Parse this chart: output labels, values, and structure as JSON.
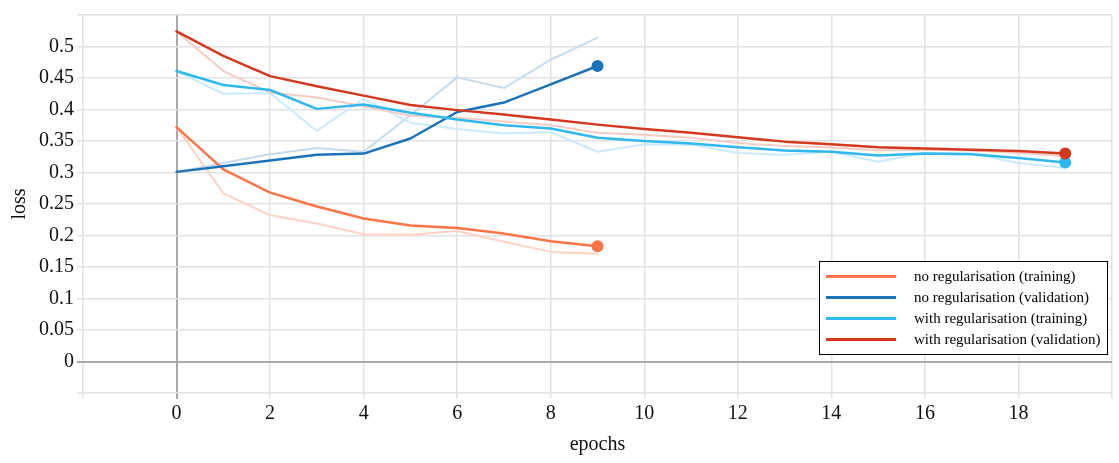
{
  "chart_data": {
    "type": "line",
    "xlabel": "epochs",
    "ylabel": "loss",
    "xlim": [
      -2,
      20
    ],
    "xticks": [
      {
        "value": -2,
        "label": null
      },
      0,
      2,
      4,
      6,
      8,
      10,
      12,
      14,
      16,
      18,
      {
        "value": 20,
        "label": null
      }
    ],
    "ylim": [
      -0.05,
      0.55
    ],
    "yticks": [
      {
        "value": -0.05,
        "label": null
      },
      0,
      0.05,
      0.1,
      0.15,
      0.2,
      0.25,
      0.3,
      0.35,
      0.4,
      0.45,
      0.5,
      {
        "value": 0.55,
        "label": null
      }
    ],
    "grid": true,
    "legend": "bottom right",
    "line_style": "solid",
    "series": [
      {
        "color": "#fdd3c6",
        "marker": "none",
        "x": [
          0,
          1,
          2,
          3,
          4,
          5,
          6,
          7,
          8,
          9
        ],
        "values": [
          0.372,
          0.267,
          0.232,
          0.219,
          0.202,
          0.201,
          0.207,
          0.19,
          0.174,
          0.171
        ]
      },
      {
        "color": "#c6dcee",
        "marker": "none",
        "x": [
          0,
          1,
          2,
          3,
          4,
          5,
          6,
          7,
          8,
          9
        ],
        "values": [
          0.301,
          0.315,
          0.329,
          0.339,
          0.333,
          0.391,
          0.451,
          0.434,
          0.479,
          0.514
        ]
      },
      {
        "color": "#c9ebfa",
        "marker": "none",
        "x": [
          0,
          1,
          2,
          3,
          4,
          5,
          6,
          7,
          8,
          9,
          10,
          11,
          12,
          13,
          14,
          15,
          16,
          17,
          18,
          19
        ],
        "values": [
          0.461,
          0.425,
          0.426,
          0.366,
          0.417,
          0.379,
          0.369,
          0.362,
          0.364,
          0.333,
          0.345,
          0.344,
          0.331,
          0.328,
          0.333,
          0.317,
          0.331,
          0.33,
          0.315,
          0.307
        ]
      },
      {
        "color": "#f4cdc4",
        "marker": "none",
        "x": [
          0,
          1,
          2,
          3,
          4,
          5,
          6,
          7,
          8,
          9,
          10,
          11,
          12,
          13,
          14,
          15,
          16,
          17,
          18,
          19
        ],
        "values": [
          0.524,
          0.461,
          0.427,
          0.419,
          0.405,
          0.39,
          0.387,
          0.381,
          0.375,
          0.363,
          0.36,
          0.355,
          0.347,
          0.342,
          0.34,
          0.335,
          0.336,
          0.335,
          0.331,
          0.326
        ]
      },
      {
        "type": "scatter",
        "color": "#fd7446",
        "marker": "circle",
        "x": [
          9
        ],
        "values": [
          0.183
        ]
      },
      {
        "type": "scatter",
        "color": "#1a73b8",
        "marker": "circle",
        "x": [
          9
        ],
        "values": [
          0.469
        ]
      },
      {
        "type": "scatter",
        "color": "#2fb8ee",
        "marker": "circle",
        "x": [
          19
        ],
        "values": [
          0.316
        ]
      },
      {
        "type": "scatter",
        "color": "#d4381e",
        "marker": "circle",
        "x": [
          19
        ],
        "values": [
          0.33
        ]
      },
      {
        "name": "no regularisation (training)",
        "color": "#fd7446",
        "marker": "none",
        "x": [
          0,
          1,
          2,
          3,
          4,
          5,
          6,
          7,
          8,
          9
        ],
        "values": [
          0.372,
          0.305,
          0.268,
          0.246,
          0.227,
          0.216,
          0.212,
          0.203,
          0.191,
          0.183
        ]
      },
      {
        "name": "no regularisation (validation)",
        "color": "#1a73b8",
        "marker": "none",
        "x": [
          0,
          1,
          2,
          3,
          4,
          5,
          6,
          7,
          8,
          9
        ],
        "values": [
          0.301,
          0.31,
          0.319,
          0.328,
          0.33,
          0.354,
          0.396,
          0.411,
          0.44,
          0.469
        ]
      },
      {
        "name": "with regularisation (training)",
        "color": "#2fb8ee",
        "marker": "none",
        "x": [
          0,
          1,
          2,
          3,
          4,
          5,
          6,
          7,
          8,
          9,
          10,
          11,
          12,
          13,
          14,
          15,
          16,
          17,
          18,
          19
        ],
        "values": [
          0.461,
          0.439,
          0.431,
          0.401,
          0.408,
          0.395,
          0.384,
          0.375,
          0.37,
          0.355,
          0.35,
          0.346,
          0.34,
          0.335,
          0.333,
          0.327,
          0.33,
          0.329,
          0.323,
          0.316
        ]
      },
      {
        "name": "with regularisation (validation)",
        "color": "#d4381e",
        "marker": "none",
        "x": [
          0,
          1,
          2,
          3,
          4,
          5,
          6,
          7,
          8,
          9,
          10,
          11,
          12,
          13,
          14,
          15,
          16,
          17,
          18,
          19
        ],
        "values": [
          0.524,
          0.485,
          0.453,
          0.437,
          0.422,
          0.407,
          0.399,
          0.392,
          0.384,
          0.376,
          0.369,
          0.363,
          0.356,
          0.349,
          0.345,
          0.34,
          0.338,
          0.336,
          0.334,
          0.33
        ]
      }
    ]
  }
}
